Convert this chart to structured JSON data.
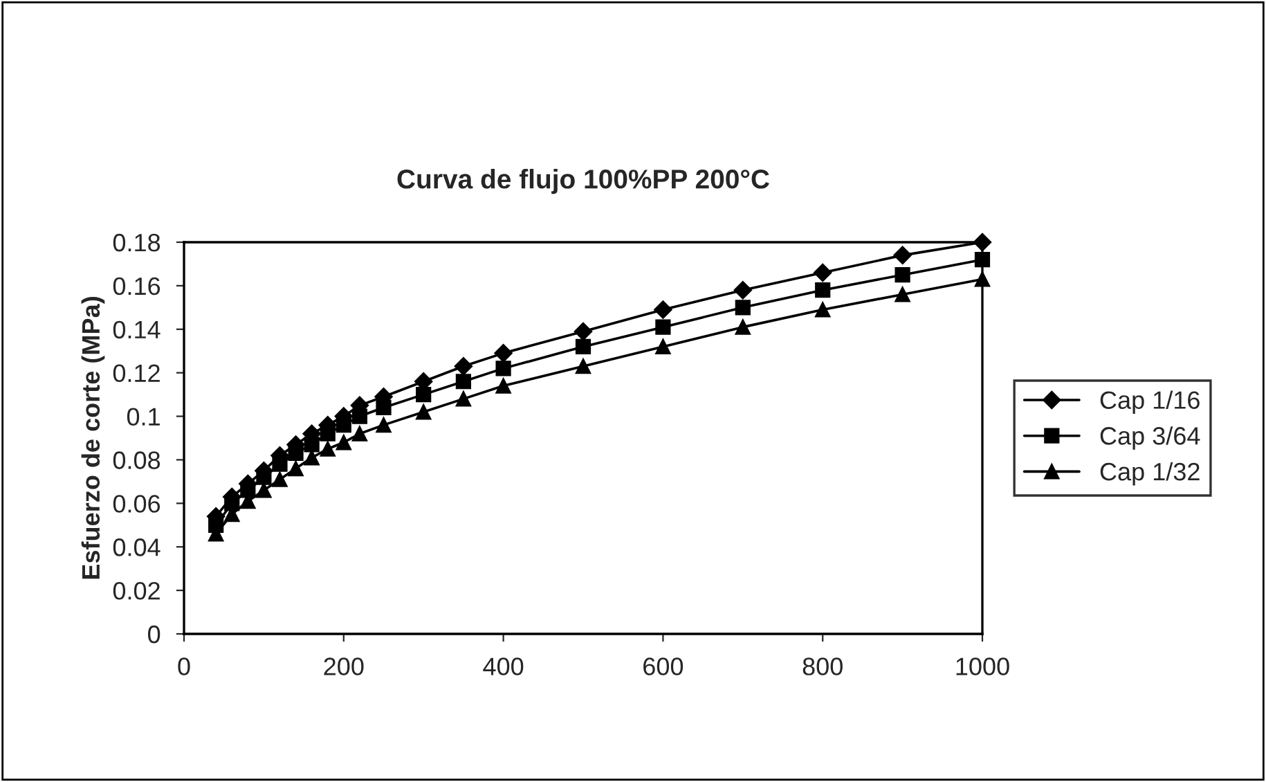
{
  "chart_data": {
    "type": "line",
    "title": "Curva de flujo 100%PP 200°C",
    "ylabel": "Esfuerzo de corte (MPa)",
    "x": [
      40,
      60,
      80,
      100,
      120,
      140,
      160,
      180,
      200,
      220,
      250,
      300,
      350,
      400,
      500,
      600,
      700,
      800,
      900,
      1000
    ],
    "series": [
      {
        "name": "Cap 1/16",
        "color": "#000000",
        "marker": "diamond",
        "values": [
          0.054,
          0.063,
          0.069,
          0.075,
          0.082,
          0.087,
          0.092,
          0.096,
          0.1,
          0.105,
          0.109,
          0.116,
          0.123,
          0.129,
          0.139,
          0.149,
          0.158,
          0.166,
          0.174,
          0.18
        ]
      },
      {
        "name": "Cap 3/64",
        "color": "#000000",
        "marker": "square",
        "values": [
          0.05,
          0.06,
          0.066,
          0.072,
          0.078,
          0.083,
          0.087,
          0.092,
          0.096,
          0.1,
          0.104,
          0.11,
          0.116,
          0.122,
          0.132,
          0.141,
          0.15,
          0.158,
          0.165,
          0.172
        ]
      },
      {
        "name": "Cap 1/32",
        "color": "#000000",
        "marker": "triangle",
        "values": [
          0.046,
          0.055,
          0.061,
          0.066,
          0.071,
          0.076,
          0.081,
          0.085,
          0.088,
          0.092,
          0.096,
          0.102,
          0.108,
          0.114,
          0.123,
          0.132,
          0.141,
          0.149,
          0.156,
          0.163
        ]
      }
    ],
    "xlim": [
      0,
      1000
    ],
    "xticks": [
      0,
      200,
      400,
      600,
      800,
      1000
    ],
    "ylim": [
      0,
      0.18
    ],
    "yticks": [
      0,
      {
        "value": 0.02,
        "label": "0.02"
      },
      {
        "value": 0.04,
        "label": "0.04"
      },
      {
        "value": 0.06,
        "label": "0.06"
      },
      {
        "value": 0.08,
        "label": "0.08"
      },
      {
        "value": 0.1,
        "label": "0.1"
      },
      {
        "value": 0.12,
        "label": "0.12"
      },
      {
        "value": 0.14,
        "label": "0.14"
      },
      {
        "value": 0.16,
        "label": "0.16"
      },
      {
        "value": 0.18,
        "label": "0.18"
      }
    ],
    "grid": false,
    "legend": "right",
    "line_style": "solid"
  }
}
